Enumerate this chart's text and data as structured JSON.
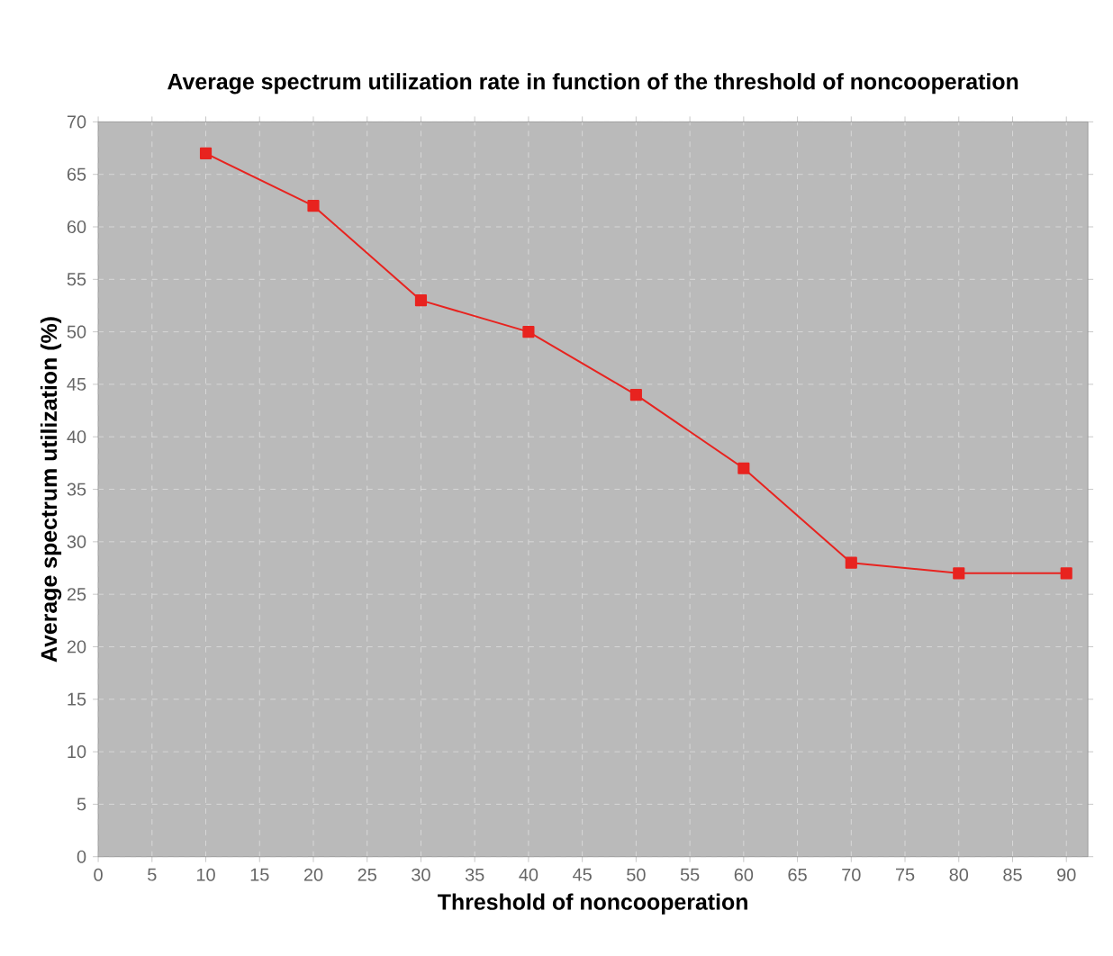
{
  "chart_data": {
    "type": "line",
    "title": "Average spectrum utilization rate in function of the threshold of noncooperation",
    "xlabel": "Threshold of noncooperation",
    "ylabel": "Average spectrum utilization (%)",
    "x": [
      10,
      20,
      30,
      40,
      50,
      60,
      70,
      80,
      90
    ],
    "series": [
      {
        "color": "#e8231f",
        "values": [
          67,
          62,
          53,
          50,
          44,
          37,
          28,
          27,
          27
        ]
      }
    ],
    "xlim": [
      0,
      92
    ],
    "xticks": [
      0,
      5,
      10,
      15,
      20,
      25,
      30,
      35,
      40,
      45,
      50,
      55,
      60,
      65,
      70,
      75,
      80,
      85,
      90
    ],
    "ylim": [
      0,
      70
    ],
    "yticks": [
      0,
      5,
      10,
      15,
      20,
      25,
      30,
      35,
      40,
      45,
      50,
      55,
      60,
      65,
      70
    ],
    "grid": true,
    "marker": "square",
    "line_style": "solid"
  }
}
